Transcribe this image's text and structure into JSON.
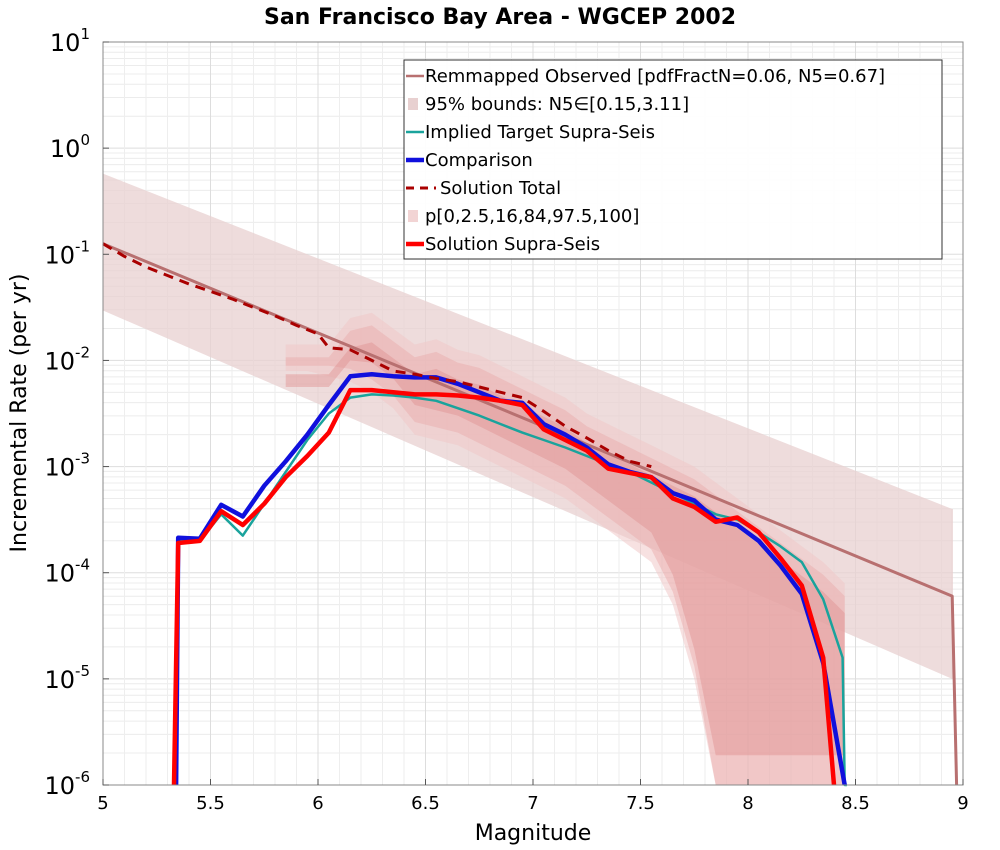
{
  "chart_data": {
    "type": "line",
    "title": "San Francisco Bay Area - WGCEP 2002",
    "xlabel": "Magnitude",
    "ylabel": "Incremental Rate (per yr)",
    "xlim": [
      5,
      9
    ],
    "ylim_log10": [
      -6,
      1
    ],
    "y_scale": "log",
    "grid": true,
    "legend_position": "top-right",
    "xticks": [
      "5",
      "5.5",
      "6",
      "6.5",
      "7",
      "7.5",
      "8",
      "8.5",
      "9"
    ],
    "yticks": [
      {
        "base": "10",
        "exp": "1"
      },
      {
        "base": "10",
        "exp": "0"
      },
      {
        "base": "10",
        "exp": "-1"
      },
      {
        "base": "10",
        "exp": "-2"
      },
      {
        "base": "10",
        "exp": "-3"
      },
      {
        "base": "10",
        "exp": "-4"
      },
      {
        "base": "10",
        "exp": "-5"
      },
      {
        "base": "10",
        "exp": "-6"
      }
    ],
    "legend": [
      {
        "label": "Remmapped Observed [pdfFractN=0.06, N5=0.67]",
        "style": "line",
        "color": "#b87070"
      },
      {
        "label": "95% bounds: N5∈[0.15,3.11]",
        "style": "box",
        "color": "#e8d0d0"
      },
      {
        "label": "Implied Target Supra-Seis",
        "style": "line",
        "color": "#1aa39c"
      },
      {
        "label": "Comparison",
        "style": "thickline",
        "color": "#1010dd"
      },
      {
        "label": "Solution Total",
        "style": "dashed",
        "color": "#aa0000"
      },
      {
        "label": "p[0,2.5,16,84,97.5,100]",
        "style": "box",
        "color": "#f2d4d4"
      },
      {
        "label": "Solution Supra-Seis",
        "style": "thickline",
        "color": "#ff0000"
      }
    ],
    "series": [
      {
        "name": "Remmapped Observed",
        "color": "#b87070",
        "x": [
          5.0,
          8.95,
          8.97
        ],
        "log10y": [
          -0.9,
          -4.22,
          -6.0
        ]
      },
      {
        "name": "95% bounds upper",
        "color": "#e8d0d0",
        "x": [
          5.0,
          8.95
        ],
        "log10y": [
          -0.24,
          -3.4
        ]
      },
      {
        "name": "95% bounds lower",
        "color": "#e8d0d0",
        "x": [
          5.0,
          8.95
        ],
        "log10y": [
          -1.53,
          -5.0
        ]
      },
      {
        "name": "Implied Target Supra-Seis",
        "color": "#1aa39c",
        "x": [
          5.35,
          5.45,
          5.55,
          5.65,
          5.75,
          5.85,
          5.95,
          6.05,
          6.15,
          6.25,
          6.35,
          6.45,
          6.55,
          6.65,
          6.75,
          6.85,
          6.95,
          7.05,
          7.15,
          7.25,
          7.35,
          7.45,
          7.55,
          7.65,
          7.75,
          7.85,
          7.95,
          8.05,
          8.15,
          8.25,
          8.35,
          8.44,
          8.45,
          8.46
        ],
        "log10y": [
          -3.7,
          -3.7,
          -3.45,
          -3.65,
          -3.35,
          -3.05,
          -2.75,
          -2.5,
          -2.35,
          -2.32,
          -2.33,
          -2.35,
          -2.38,
          -2.45,
          -2.52,
          -2.6,
          -2.68,
          -2.75,
          -2.82,
          -2.9,
          -2.98,
          -3.05,
          -3.15,
          -3.25,
          -3.35,
          -3.45,
          -3.5,
          -3.62,
          -3.75,
          -3.9,
          -4.25,
          -4.8,
          -6.0,
          -6.0
        ]
      },
      {
        "name": "Comparison",
        "color": "#1010dd",
        "x": [
          5.34,
          5.35,
          5.45,
          5.55,
          5.65,
          5.75,
          5.85,
          5.95,
          6.05,
          6.15,
          6.25,
          6.35,
          6.45,
          6.55,
          6.65,
          6.75,
          6.85,
          6.95,
          7.05,
          7.15,
          7.25,
          7.35,
          7.45,
          7.55,
          7.65,
          7.75,
          7.85,
          7.95,
          8.05,
          8.15,
          8.25,
          8.35,
          8.45
        ],
        "log10y": [
          -6.0,
          -3.67,
          -3.68,
          -3.36,
          -3.47,
          -3.18,
          -2.95,
          -2.7,
          -2.42,
          -2.15,
          -2.13,
          -2.15,
          -2.16,
          -2.16,
          -2.22,
          -2.3,
          -2.38,
          -2.4,
          -2.6,
          -2.7,
          -2.82,
          -2.98,
          -3.05,
          -3.1,
          -3.25,
          -3.32,
          -3.5,
          -3.55,
          -3.7,
          -3.93,
          -4.2,
          -4.85,
          -6.0
        ]
      },
      {
        "name": "Solution Total",
        "color": "#aa0000",
        "x": [
          5.0,
          5.1,
          5.2,
          5.3,
          5.4,
          5.5,
          5.6,
          5.7,
          5.8,
          5.9,
          6.0,
          6.05,
          6.15,
          6.25,
          6.35,
          6.45,
          6.55,
          6.65,
          6.75,
          6.85,
          6.95,
          7.05,
          7.15,
          7.25,
          7.35,
          7.45,
          7.55
        ],
        "log10y": [
          -0.9,
          -1.02,
          -1.12,
          -1.2,
          -1.28,
          -1.35,
          -1.42,
          -1.5,
          -1.58,
          -1.67,
          -1.75,
          -1.88,
          -1.9,
          -2.0,
          -2.1,
          -2.13,
          -2.17,
          -2.2,
          -2.25,
          -2.3,
          -2.35,
          -2.48,
          -2.62,
          -2.73,
          -2.85,
          -2.95,
          -3.0
        ]
      },
      {
        "name": "Solution Supra-Seis",
        "color": "#ff0000",
        "x": [
          5.33,
          5.35,
          5.45,
          5.55,
          5.65,
          5.75,
          5.85,
          5.95,
          6.05,
          6.15,
          6.25,
          6.35,
          6.45,
          6.55,
          6.65,
          6.75,
          6.85,
          6.95,
          7.05,
          7.15,
          7.25,
          7.35,
          7.45,
          7.55,
          7.65,
          7.75,
          7.85,
          7.95,
          8.05,
          8.15,
          8.25,
          8.35,
          8.4
        ],
        "log10y": [
          -6.0,
          -3.72,
          -3.7,
          -3.42,
          -3.55,
          -3.35,
          -3.1,
          -2.9,
          -2.68,
          -2.28,
          -2.28,
          -2.3,
          -2.32,
          -2.32,
          -2.33,
          -2.35,
          -2.38,
          -2.42,
          -2.65,
          -2.75,
          -2.85,
          -3.02,
          -3.06,
          -3.1,
          -3.3,
          -3.38,
          -3.52,
          -3.48,
          -3.62,
          -3.86,
          -4.12,
          -4.8,
          -6.0
        ]
      },
      {
        "name": "p[0,100] upper",
        "color": "#f2d4d4",
        "x": [
          5.85,
          5.95,
          6.05,
          6.15,
          6.25,
          6.35,
          6.45,
          6.55,
          6.65,
          6.75,
          6.85,
          6.95,
          7.05,
          7.15,
          7.25,
          7.35,
          7.45,
          7.55,
          7.65,
          7.75,
          7.85,
          7.95,
          8.05,
          8.15,
          8.25,
          8.35,
          8.45
        ],
        "log10y": [
          -1.85,
          -1.85,
          -1.85,
          -1.6,
          -1.55,
          -1.7,
          -1.85,
          -1.8,
          -1.9,
          -1.95,
          -2.05,
          -2.15,
          -2.25,
          -2.35,
          -2.5,
          -2.6,
          -2.7,
          -2.8,
          -2.9,
          -3.0,
          -3.15,
          -3.3,
          -3.45,
          -3.6,
          -3.75,
          -3.9,
          -4.1
        ]
      },
      {
        "name": "p[0,100] lower",
        "color": "#f2d4d4",
        "x": [
          5.85,
          5.95,
          6.05,
          6.15,
          6.25,
          6.35,
          6.45,
          6.55,
          6.65,
          6.75,
          6.85,
          6.95,
          7.05,
          7.15,
          7.25,
          7.35,
          7.45,
          7.55,
          7.65,
          7.75,
          7.85,
          7.95,
          8.05,
          8.15,
          8.25,
          8.35,
          8.45
        ],
        "log10y": [
          -2.1,
          -2.1,
          -2.15,
          -2.2,
          -2.3,
          -2.45,
          -2.7,
          -2.75,
          -2.8,
          -2.9,
          -3.0,
          -3.1,
          -3.2,
          -3.3,
          -3.45,
          -3.6,
          -3.75,
          -3.9,
          -4.3,
          -5.0,
          -6.0,
          -6.0,
          -6.0,
          -6.0,
          -6.0,
          -6.0,
          -6.0
        ]
      }
    ]
  }
}
